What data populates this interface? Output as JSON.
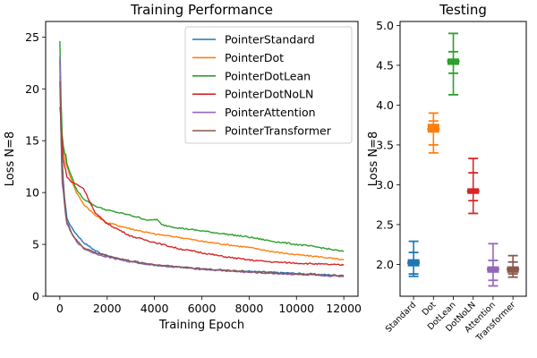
{
  "chart_data": [
    {
      "type": "line",
      "title": "Training Performance",
      "xlabel": "Training Epoch",
      "ylabel": "Loss N=8",
      "xlim": [
        -600,
        12600
      ],
      "ylim": [
        0,
        26.5
      ],
      "xticks": [
        0,
        2000,
        4000,
        6000,
        8000,
        10000,
        12000
      ],
      "yticks": [
        0,
        5,
        10,
        15,
        20,
        25
      ],
      "legend_position": "top-right",
      "series": [
        {
          "name": "PointerStandard",
          "color": "#1f77b4",
          "x": [
            0,
            50,
            100,
            200,
            300,
            500,
            700,
            1000,
            1500,
            2000,
            3000,
            4000,
            5000,
            6000,
            7000,
            8000,
            9000,
            10000,
            11000,
            12000
          ],
          "y": [
            22.5,
            16.0,
            13.0,
            9.5,
            7.5,
            6.6,
            6.0,
            5.2,
            4.4,
            3.9,
            3.3,
            3.0,
            2.8,
            2.65,
            2.5,
            2.4,
            2.3,
            2.2,
            2.1,
            2.0
          ]
        },
        {
          "name": "PointerDot",
          "color": "#ff7f0e",
          "x": [
            0,
            50,
            100,
            200,
            300,
            500,
            700,
            1000,
            1500,
            2000,
            3000,
            4000,
            5000,
            6000,
            7000,
            8000,
            9000,
            10000,
            11000,
            12000
          ],
          "y": [
            21.5,
            17.5,
            15.0,
            13.5,
            12.5,
            11.2,
            10.0,
            8.9,
            7.8,
            7.1,
            6.5,
            6.0,
            5.7,
            5.3,
            5.0,
            4.7,
            4.3,
            4.0,
            3.8,
            3.5
          ]
        },
        {
          "name": "PointerDotLean",
          "color": "#2ca02c",
          "x": [
            0,
            50,
            100,
            200,
            300,
            500,
            700,
            1000,
            1500,
            2000,
            3000,
            3800,
            4000,
            4100,
            4300,
            5000,
            6000,
            7000,
            8000,
            9000,
            10000,
            11000,
            12000
          ],
          "y": [
            24.7,
            19.0,
            15.5,
            14.0,
            12.8,
            11.5,
            10.3,
            9.4,
            8.7,
            8.3,
            7.8,
            7.3,
            7.4,
            7.4,
            6.9,
            6.6,
            6.3,
            6.0,
            5.7,
            5.3,
            5.0,
            4.7,
            4.3
          ]
        },
        {
          "name": "PointerDotNoLN",
          "color": "#d62728",
          "x": [
            0,
            50,
            100,
            200,
            300,
            500,
            700,
            1000,
            1500,
            2000,
            3000,
            4000,
            5000,
            6000,
            7000,
            8000,
            9000,
            10000,
            11000,
            12000
          ],
          "y": [
            18.2,
            17.0,
            14.5,
            12.5,
            11.5,
            11.0,
            10.8,
            10.4,
            8.0,
            7.0,
            5.8,
            5.2,
            4.6,
            4.2,
            3.8,
            3.5,
            3.3,
            3.2,
            3.1,
            3.0
          ]
        },
        {
          "name": "PointerAttention",
          "color": "#9467bd",
          "x": [
            0,
            50,
            100,
            200,
            300,
            500,
            700,
            1000,
            1500,
            2000,
            3000,
            4000,
            5000,
            6000,
            7000,
            8000,
            9000,
            10000,
            11000,
            12000
          ],
          "y": [
            23.0,
            15.5,
            11.0,
            8.5,
            7.0,
            6.0,
            5.3,
            4.6,
            4.1,
            3.8,
            3.3,
            3.0,
            2.8,
            2.6,
            2.45,
            2.3,
            2.2,
            2.1,
            2.0,
            1.9
          ]
        },
        {
          "name": "PointerTransformer",
          "color": "#8c564b",
          "x": [
            0,
            50,
            100,
            200,
            300,
            500,
            700,
            1000,
            1500,
            2000,
            3000,
            4000,
            5000,
            6000,
            7000,
            8000,
            9000,
            10000,
            11000,
            12000
          ],
          "y": [
            21.0,
            15.8,
            12.0,
            9.0,
            7.2,
            6.1,
            5.4,
            4.7,
            4.2,
            3.9,
            3.4,
            3.05,
            2.85,
            2.65,
            2.5,
            2.35,
            2.25,
            2.15,
            2.05,
            1.95
          ]
        }
      ]
    },
    {
      "type": "box",
      "title": "Testing",
      "xlabel": "",
      "ylabel": "Loss N=8",
      "ylim": [
        1.6,
        5.05
      ],
      "yticks": [
        2.0,
        2.5,
        3.0,
        3.5,
        4.0,
        4.5,
        5.0
      ],
      "yticklabels": [
        "2.0",
        "2.5",
        "3.0",
        "3.5",
        "4.0",
        "4.5",
        "5.0"
      ],
      "categories": [
        "Standard",
        "Dot",
        "DotLean",
        "DotNoLN",
        "Attention",
        "Transformer"
      ],
      "series": [
        {
          "category": "Standard",
          "color": "#1f77b4",
          "min": 1.85,
          "q1": 1.98,
          "median": 2.02,
          "q3": 2.06,
          "max": 2.29,
          "whisker_caps": [
            1.88,
            2.15
          ]
        },
        {
          "category": "Dot",
          "color": "#ff7f0e",
          "min": 3.4,
          "q1": 3.66,
          "median": 3.7,
          "q3": 3.76,
          "max": 3.9,
          "whisker_caps": [
            3.5,
            3.8
          ]
        },
        {
          "category": "DotLean",
          "color": "#2ca02c",
          "min": 4.13,
          "q1": 4.51,
          "median": 4.55,
          "q3": 4.58,
          "max": 4.9,
          "whisker_caps": [
            4.4,
            4.67
          ]
        },
        {
          "category": "DotNoLN",
          "color": "#d62728",
          "min": 2.64,
          "q1": 2.89,
          "median": 2.92,
          "q3": 2.95,
          "max": 3.33,
          "whisker_caps": [
            2.8,
            3.15
          ]
        },
        {
          "category": "Attention",
          "color": "#9467bd",
          "min": 1.73,
          "q1": 1.9,
          "median": 1.94,
          "q3": 1.97,
          "max": 2.26,
          "whisker_caps": [
            1.8,
            2.05
          ]
        },
        {
          "category": "Transformer",
          "color": "#8c564b",
          "min": 1.84,
          "q1": 1.9,
          "median": 1.94,
          "q3": 1.97,
          "max": 2.11,
          "whisker_caps": [
            1.88,
            2.03
          ]
        }
      ]
    }
  ]
}
